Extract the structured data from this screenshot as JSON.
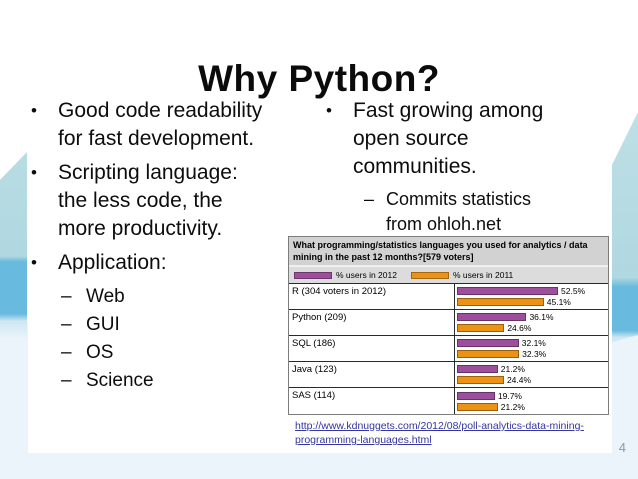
{
  "slide": {
    "title": "Why Python?",
    "page_number": "4"
  },
  "markers": {
    "bullet": "•",
    "dash": "–"
  },
  "left_column": {
    "bullet1_lines": [
      "Good code readability",
      "for fast development."
    ],
    "bullet2_lines": [
      "Scripting language:",
      "the less code, the",
      "more productivity."
    ],
    "bullet3": "Application:",
    "sub_bullets": [
      "Web",
      "GUI",
      "OS",
      "Science"
    ]
  },
  "right_column": {
    "bullet1_lines": [
      "Fast growing among",
      "open source",
      "communities."
    ],
    "sub_bullet_lines": [
      "Commits statistics",
      "from ohloh.net"
    ],
    "source_link": "http://www.kdnuggets.com/2012/08/poll-analytics-data-mining-programming-languages.html"
  },
  "chart_data": {
    "type": "bar",
    "orientation": "horizontal",
    "title": "What programming/statistics languages you used for analytics / data mining in the past 12 months?[579 voters]",
    "categories": [
      "R (304 voters in 2012)",
      "Python (209)",
      "SQL (186)",
      "Java (123)",
      "SAS (114)"
    ],
    "series": [
      {
        "name": "% users in 2012",
        "color": "#9d4f9d",
        "values": [
          52.5,
          36.1,
          32.1,
          21.2,
          19.7
        ]
      },
      {
        "name": "% users in 2011",
        "color": "#ec9214",
        "values": [
          45.1,
          24.6,
          32.3,
          24.4,
          21.2
        ]
      }
    ],
    "value_suffix": "%",
    "xlim": [
      0,
      60
    ],
    "legend_position": "top",
    "header_bg": "#d2d2d2"
  }
}
